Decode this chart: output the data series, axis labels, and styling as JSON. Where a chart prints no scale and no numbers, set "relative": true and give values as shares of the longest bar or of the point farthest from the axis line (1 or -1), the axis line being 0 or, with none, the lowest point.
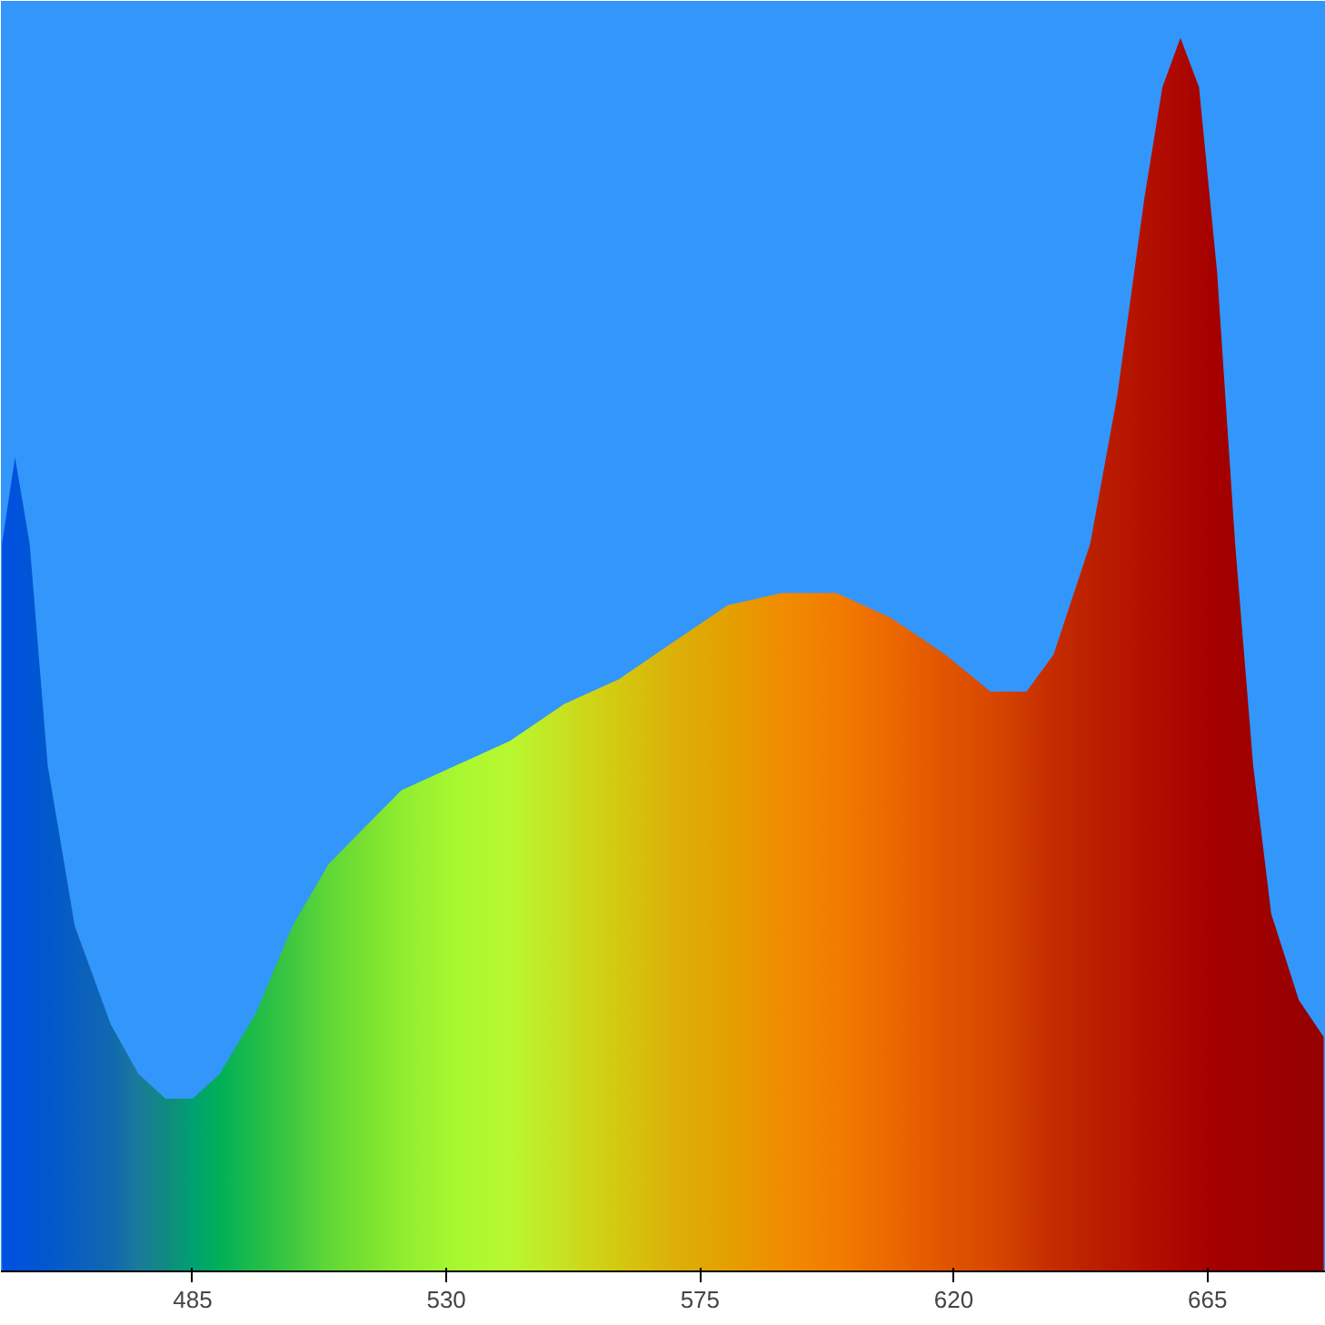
{
  "chart_data": {
    "type": "area",
    "relative": true,
    "xlim": [
      451,
      686
    ],
    "xticks": [
      485,
      530,
      575,
      620,
      665
    ],
    "grid": false,
    "x": [
      451.2,
      453.5,
      456.1,
      459.3,
      464.1,
      470.5,
      475.4,
      480.2,
      485,
      489.8,
      496.3,
      502.7,
      509.1,
      515.5,
      522,
      531.6,
      541.3,
      550.9,
      560.6,
      570.2,
      579.9,
      589.5,
      599.2,
      608.8,
      618.5,
      626.5,
      632.9,
      637.7,
      644.2,
      649,
      653.8,
      657,
      660.2,
      663.5,
      666.7,
      669.9,
      673.1,
      676.3,
      681.2,
      685.6
    ],
    "values": [
      0.59,
      0.66,
      0.59,
      0.41,
      0.28,
      0.2,
      0.16,
      0.14,
      0.14,
      0.16,
      0.21,
      0.28,
      0.33,
      0.36,
      0.39,
      0.41,
      0.43,
      0.46,
      0.48,
      0.51,
      0.54,
      0.55,
      0.55,
      0.53,
      0.5,
      0.47,
      0.47,
      0.5,
      0.59,
      0.71,
      0.87,
      0.96,
      1,
      0.96,
      0.81,
      0.59,
      0.41,
      0.29,
      0.22,
      0.19
    ],
    "colors": [
      "#0050e0",
      "#0052dc",
      "#0055d6",
      "#0058cc",
      "#0a5ec0",
      "#1068b0",
      "#1a7a9a",
      "#108a80",
      "#00a070",
      "#00b058",
      "#20bc48",
      "#40c840",
      "#60d838",
      "#78e030",
      "#90ec30",
      "#a8f830",
      "#b8f830",
      "#c8e020",
      "#d4c810",
      "#dcb008",
      "#e4a000",
      "#f08c00",
      "#f27c00",
      "#ec6800",
      "#e05400",
      "#d84800",
      "#cc3800",
      "#c42c00",
      "#bc2000",
      "#b81800",
      "#b41000",
      "#b00c00",
      "#ac0800",
      "#a80400",
      "#a40000",
      "#a00000",
      "#a00000",
      "#9c0000",
      "#980000",
      "#940000"
    ]
  }
}
